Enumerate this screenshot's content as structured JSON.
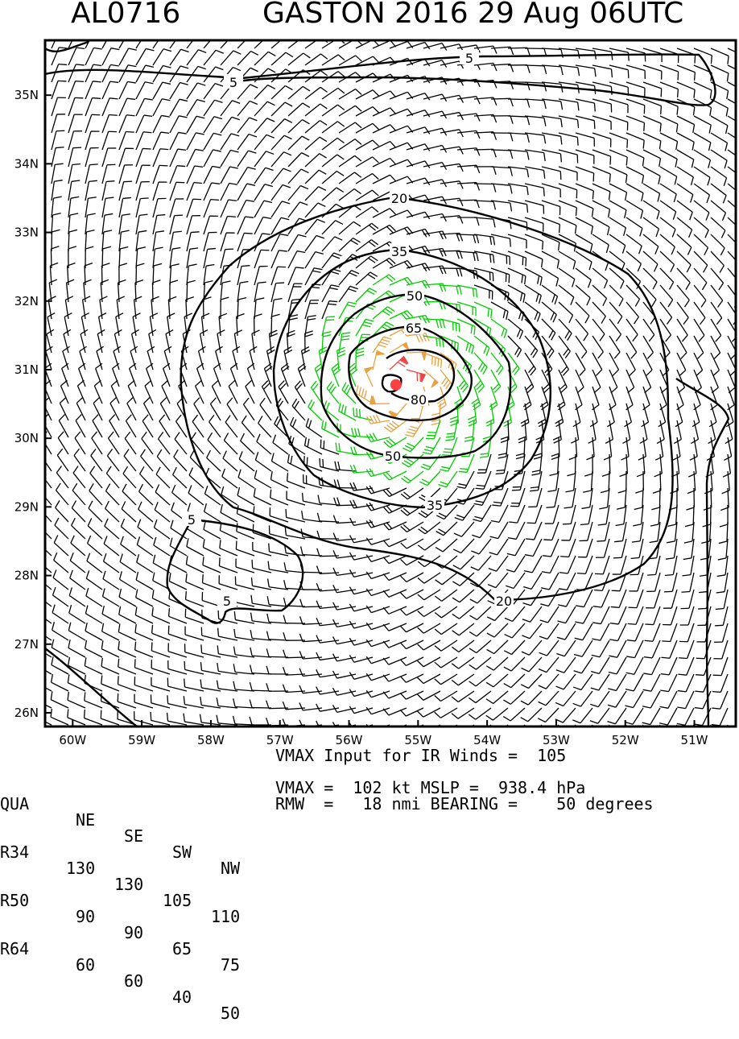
{
  "title": {
    "storm_id": "AL0716",
    "header": "GASTON 2016 29 Aug 06UTC"
  },
  "colors": {
    "calm": "#000000",
    "ts": "#00cc00",
    "cat1": "#e8a040",
    "cat3": "#ee4444",
    "center": "#ff4040"
  },
  "chart_data": {
    "type": "contour",
    "title": "GASTON 2016 29 Aug 06UTC",
    "xlabel": "",
    "ylabel": "",
    "xlim": [
      -60.4,
      -50.4
    ],
    "ylim": [
      25.8,
      35.8
    ],
    "x_ticks": [
      {
        "value": -60,
        "label": "60W"
      },
      {
        "value": -59,
        "label": "59W"
      },
      {
        "value": -58,
        "label": "58W"
      },
      {
        "value": -57,
        "label": "57W"
      },
      {
        "value": -56,
        "label": "56W"
      },
      {
        "value": -55,
        "label": "55W"
      },
      {
        "value": -54,
        "label": "54W"
      },
      {
        "value": -53,
        "label": "53W"
      },
      {
        "value": -52,
        "label": "52W"
      },
      {
        "value": -51,
        "label": "51W"
      }
    ],
    "y_ticks": [
      {
        "value": 26,
        "label": "26N"
      },
      {
        "value": 27,
        "label": "27N"
      },
      {
        "value": 28,
        "label": "28N"
      },
      {
        "value": 29,
        "label": "29N"
      },
      {
        "value": 30,
        "label": "30N"
      },
      {
        "value": 31,
        "label": "31N"
      },
      {
        "value": 32,
        "label": "32N"
      },
      {
        "value": 33,
        "label": "33N"
      },
      {
        "value": 34,
        "label": "34N"
      },
      {
        "value": 35,
        "label": "35N"
      }
    ],
    "center": {
      "lon": -55.32,
      "lat": 30.78
    },
    "contour_levels": [
      {
        "level": 5,
        "label": "5"
      },
      {
        "level": 20,
        "label": "20"
      },
      {
        "level": 35,
        "label": "35"
      },
      {
        "level": 50,
        "label": "50"
      },
      {
        "level": 65,
        "label": "65"
      },
      {
        "level": 80,
        "label": "80"
      }
    ],
    "contour_label_texts": [
      "5",
      "5",
      "5",
      "5",
      "20",
      "20",
      "35",
      "35",
      "50",
      "50",
      "65",
      "80"
    ],
    "vmax_kt": 102,
    "rmw_nmi": 18,
    "bearing_deg": 50
  },
  "info": {
    "header_row": [
      "QUA",
      "NE",
      "SE",
      "SW",
      "NW"
    ],
    "rows": [
      {
        "label": "R34",
        "values": [
          "130",
          "130",
          "105",
          "110"
        ]
      },
      {
        "label": "R50",
        "values": [
          "90",
          "90",
          "65",
          "75"
        ]
      },
      {
        "label": "R64",
        "values": [
          "60",
          "60",
          "40",
          "50"
        ]
      }
    ],
    "line1": "VMAX Input for IR Winds =  105",
    "line2": "VMAX =  102 kt MSLP =  938.4 hPa",
    "line3": "RMW  =   18 nmi BEARING =    50 degrees"
  }
}
